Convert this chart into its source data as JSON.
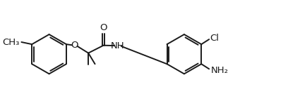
{
  "bg_color": "#ffffff",
  "line_color": "#1a1a1a",
  "line_width": 1.4,
  "font_size": 9.5,
  "figsize": [
    4.08,
    1.54
  ],
  "dpi": 100,
  "xlim": [
    0,
    10.2
  ],
  "ylim": [
    0,
    3.85
  ]
}
